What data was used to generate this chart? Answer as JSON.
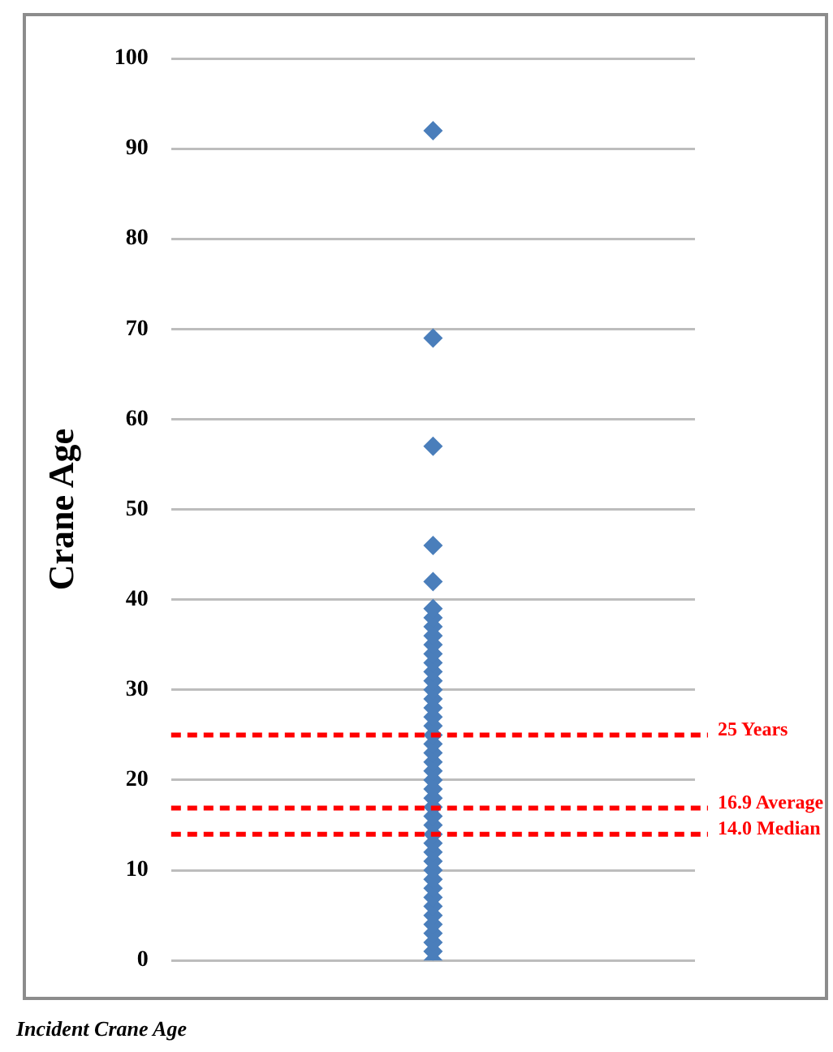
{
  "chart_data": {
    "type": "scatter",
    "ylabel": "Crane Age",
    "annotations": [
      "Incident Crane Age"
    ],
    "categories": [
      null
    ],
    "tick_labels": "y",
    "series": [
      {
        "color": "#4a7ebb",
        "x": [
          null,
          null,
          null,
          null,
          null,
          null,
          null,
          null,
          null,
          null,
          null,
          null,
          null,
          null,
          null,
          null,
          null,
          null,
          null,
          null,
          null,
          null,
          null,
          null,
          null,
          null,
          null,
          null,
          null,
          null,
          null,
          null,
          null,
          null,
          null,
          null,
          null,
          null,
          null,
          null,
          null,
          null,
          null,
          null,
          null
        ],
        "values": [
          0,
          1,
          2,
          3,
          4,
          5,
          6,
          7,
          8,
          9,
          10,
          11,
          12,
          13,
          14,
          15,
          16,
          17,
          18,
          19,
          20,
          21,
          22,
          23,
          24,
          25,
          26,
          27,
          28,
          29,
          30,
          31,
          32,
          33,
          34,
          35,
          36,
          37,
          38,
          39,
          42,
          46,
          57,
          69,
          92
        ]
      }
    ],
    "marker": "diamond",
    "ylim": [
      0,
      100
    ],
    "yticks": [
      0,
      10,
      20,
      30,
      40,
      50,
      60,
      70,
      80,
      90,
      100
    ],
    "grid": "y",
    "legend": false,
    "ref_lines": [
      {
        "axis": "y",
        "value": 25,
        "label": "25 Years",
        "color": "#ff0000",
        "line_style": "dashed"
      },
      {
        "axis": "y",
        "value": 16.9,
        "label": "16.9 Average",
        "color": "#ff0000",
        "line_style": "dashed"
      },
      {
        "axis": "y",
        "value": 14.0,
        "label": "14.0 Median",
        "color": "#ff0000",
        "line_style": "dashed"
      }
    ]
  }
}
